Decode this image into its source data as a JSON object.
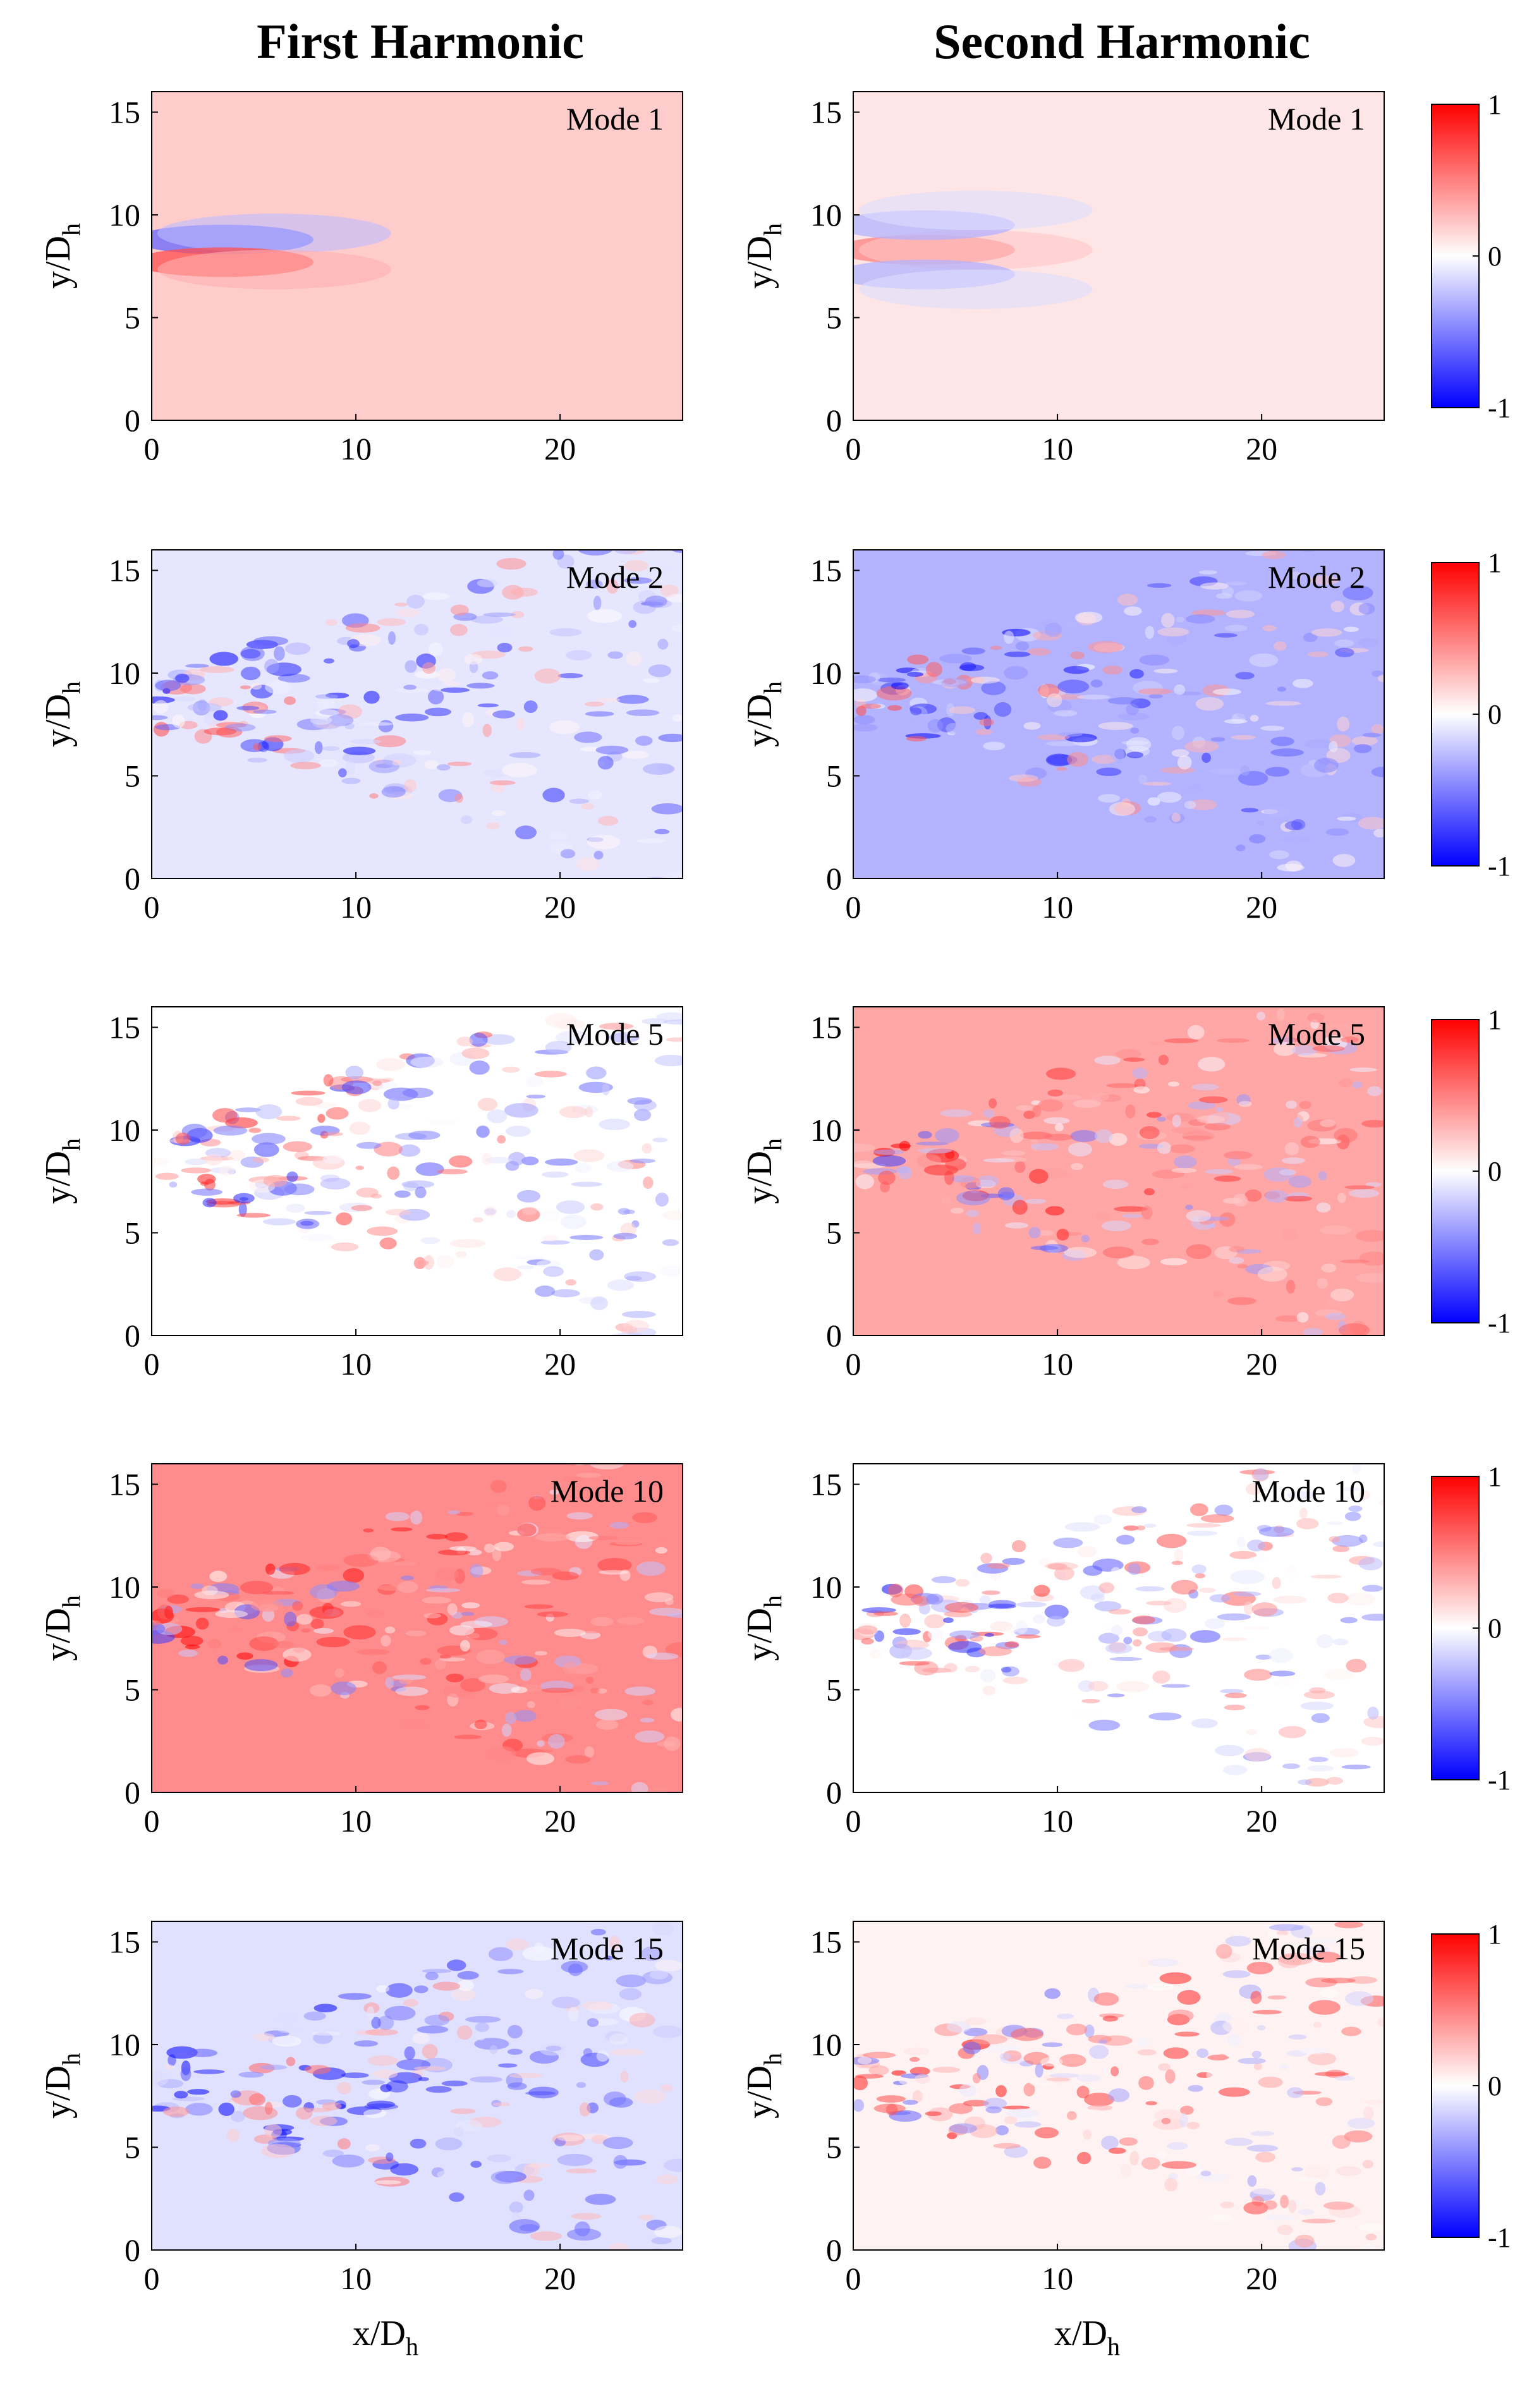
{
  "columns": [
    {
      "title": "First Harmonic"
    },
    {
      "title": "Second Harmonic"
    }
  ],
  "chart_data": {
    "type": "heatmap",
    "layout": "5x2 grid of panels with shared colorbar per row",
    "xlabel": "x/D",
    "xlabel_sub": "h",
    "ylabel": "y/D",
    "ylabel_sub": "h",
    "xlim": [
      0,
      26
    ],
    "ylim": [
      0,
      16
    ],
    "xticks": [
      0,
      10,
      20
    ],
    "yticks": [
      0,
      5,
      10,
      15
    ],
    "colorbar": {
      "range": [
        -1,
        1
      ],
      "ticks": [
        -1,
        0,
        1
      ],
      "colormap": [
        "#0000ff",
        "#ffffff",
        "#ff0000"
      ]
    },
    "rows": [
      {
        "mode": "Mode 1"
      },
      {
        "mode": "Mode 2"
      },
      {
        "mode": "Mode 5"
      },
      {
        "mode": "Mode 10"
      },
      {
        "mode": "Mode 15"
      }
    ],
    "panels": [
      {
        "column": "First Harmonic",
        "mode": "Mode 1",
        "background": 0.2,
        "pattern": "smooth",
        "jet_origin": [
          0,
          8.3
        ],
        "jet": [
          {
            "value": -0.6,
            "y_offset": 0.5
          },
          {
            "value": 0.7,
            "y_offset": -0.6
          }
        ]
      },
      {
        "column": "Second Harmonic",
        "mode": "Mode 1",
        "background": 0.1,
        "pattern": "smooth",
        "jet_origin": [
          0,
          8.3
        ],
        "jet": [
          {
            "value": 0.5,
            "y_offset": 0
          },
          {
            "value": -0.3,
            "y_offset": 1.2
          },
          {
            "value": -0.3,
            "y_offset": -1.2
          }
        ]
      },
      {
        "column": "First Harmonic",
        "mode": "Mode 2",
        "background": -0.1,
        "pattern": "turbulent",
        "jet_origin": [
          0,
          8.5
        ]
      },
      {
        "column": "Second Harmonic",
        "mode": "Mode 2",
        "background": -0.3,
        "pattern": "turbulent",
        "jet_origin": [
          0,
          8.5
        ]
      },
      {
        "column": "First Harmonic",
        "mode": "Mode 5",
        "background": 0.0,
        "pattern": "turbulent",
        "jet_origin": [
          0,
          8.5
        ]
      },
      {
        "column": "Second Harmonic",
        "mode": "Mode 5",
        "background": 0.35,
        "pattern": "turbulent",
        "jet_origin": [
          0,
          8.3
        ]
      },
      {
        "column": "First Harmonic",
        "mode": "Mode 10",
        "background": 0.45,
        "pattern": "turbulent",
        "jet_origin": [
          0,
          8.5
        ]
      },
      {
        "column": "Second Harmonic",
        "mode": "Mode 10",
        "background": 0.0,
        "pattern": "turbulent",
        "jet_origin": [
          0,
          8.2
        ]
      },
      {
        "column": "First Harmonic",
        "mode": "Mode 15",
        "background": -0.12,
        "pattern": "turbulent",
        "jet_origin": [
          0,
          8.0
        ]
      },
      {
        "column": "Second Harmonic",
        "mode": "Mode 15",
        "background": 0.05,
        "pattern": "turbulent",
        "jet_origin": [
          0,
          8.3
        ]
      }
    ]
  }
}
